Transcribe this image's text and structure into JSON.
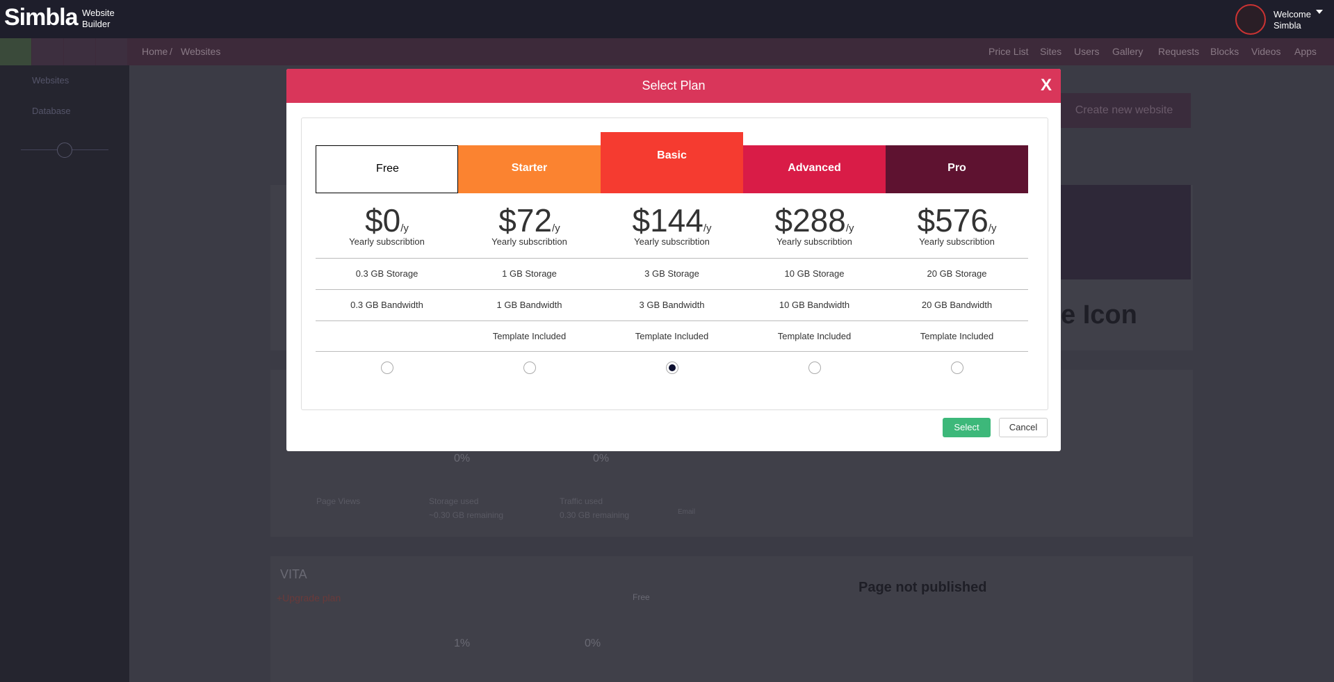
{
  "header": {
    "logo": "Simbla",
    "logo_sub": "Website Builder",
    "welcome": "Welcome",
    "user": "Simbla"
  },
  "nav": {
    "breadcrumb": [
      "Home",
      "/",
      "Websites"
    ],
    "items": [
      "Price List",
      "Sites",
      "Users",
      "Gallery",
      "Requests",
      "Blocks",
      "Videos",
      "Apps"
    ]
  },
  "sidebar": {
    "items": [
      "Websites",
      "Database"
    ]
  },
  "background": {
    "create_button": "Create new website",
    "preview_text": "e Icon",
    "page_not_published": "Page not published",
    "site_name": "VITA",
    "upgrade": "+Upgrade plan",
    "plan": "Free",
    "stats": [
      "0%",
      "0%",
      "1%",
      "0%"
    ],
    "labels": [
      "Page Views",
      "Storage used",
      "Traffic used"
    ],
    "remaining": [
      "~0.30 GB remaining",
      "0.30 GB remaining"
    ],
    "email": "Email"
  },
  "modal": {
    "title": "Select Plan",
    "close": "X",
    "selected": 2,
    "plans": [
      {
        "name": "Free",
        "price": "$0",
        "period": "/y",
        "subtitle": "Yearly subscribtion",
        "storage": "0.3 GB Storage",
        "bandwidth": "0.3 GB Bandwidth",
        "color": "#ffffff",
        "text_color": "#000000"
      },
      {
        "name": "Starter",
        "price": "$72",
        "period": "/y",
        "subtitle": "Yearly subscribtion",
        "storage": "1 GB Storage",
        "bandwidth": "1 GB Bandwidth",
        "template": "Template Included",
        "color": "#fb8330",
        "text_color": "#ffffff"
      },
      {
        "name": "Basic",
        "price": "$144",
        "period": "/y",
        "subtitle": "Yearly subscribtion",
        "storage": "3 GB Storage",
        "bandwidth": "3 GB Bandwidth",
        "template": "Template Included",
        "color": "#f53b30",
        "text_color": "#ffffff"
      },
      {
        "name": "Advanced",
        "price": "$288",
        "period": "/y",
        "subtitle": "Yearly subscribtion",
        "storage": "10 GB Storage",
        "bandwidth": "10 GB Bandwidth",
        "template": "Template Included",
        "color": "#d91c47",
        "text_color": "#ffffff"
      },
      {
        "name": "Pro",
        "price": "$576",
        "period": "/y",
        "subtitle": "Yearly subscribtion",
        "storage": "20 GB Storage",
        "bandwidth": "20 GB Bandwidth",
        "template": "Template Included",
        "color": "#5e1230",
        "text_color": "#ffffff"
      }
    ],
    "select": "Select",
    "cancel": "Cancel"
  }
}
